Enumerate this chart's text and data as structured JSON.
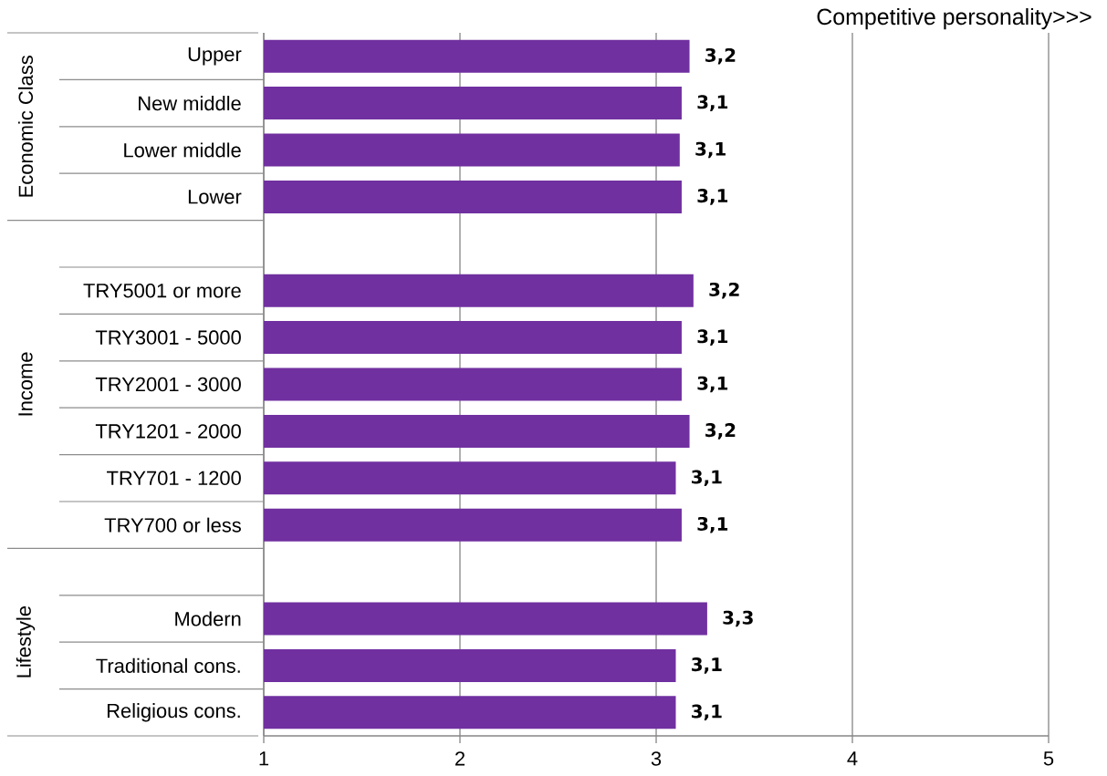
{
  "chart_data": {
    "type": "bar",
    "orientation": "horizontal",
    "xlabel": "Competitive personality>>>",
    "categories": [
      "Upper",
      "New middle",
      "Lower middle",
      "Lower",
      null,
      "TRY5001 or more",
      "TRY3001 - 5000",
      "TRY2001 - 3000",
      "TRY1201 - 2000",
      "TRY701 - 1200",
      "TRY700 or less",
      null,
      "Modern",
      "Traditional cons.",
      "Religious cons."
    ],
    "values": [
      3.17,
      3.13,
      3.12,
      3.13,
      null,
      3.19,
      3.13,
      3.13,
      3.17,
      3.1,
      3.13,
      null,
      3.26,
      3.1,
      3.1
    ],
    "value_labels": [
      "3,2",
      "3,1",
      "3,1",
      "3,1",
      null,
      "3,2",
      "3,1",
      "3,1",
      "3,2",
      "3,1",
      "3,1",
      null,
      "3,3",
      "3,1",
      "3,1"
    ],
    "color": "#7030a0",
    "xlim": [
      1,
      5
    ],
    "xticks": [
      1,
      2,
      3,
      4,
      5
    ],
    "grid": "x",
    "annotations": [
      "Economic Class",
      "Income",
      "Lifestyle"
    ]
  }
}
